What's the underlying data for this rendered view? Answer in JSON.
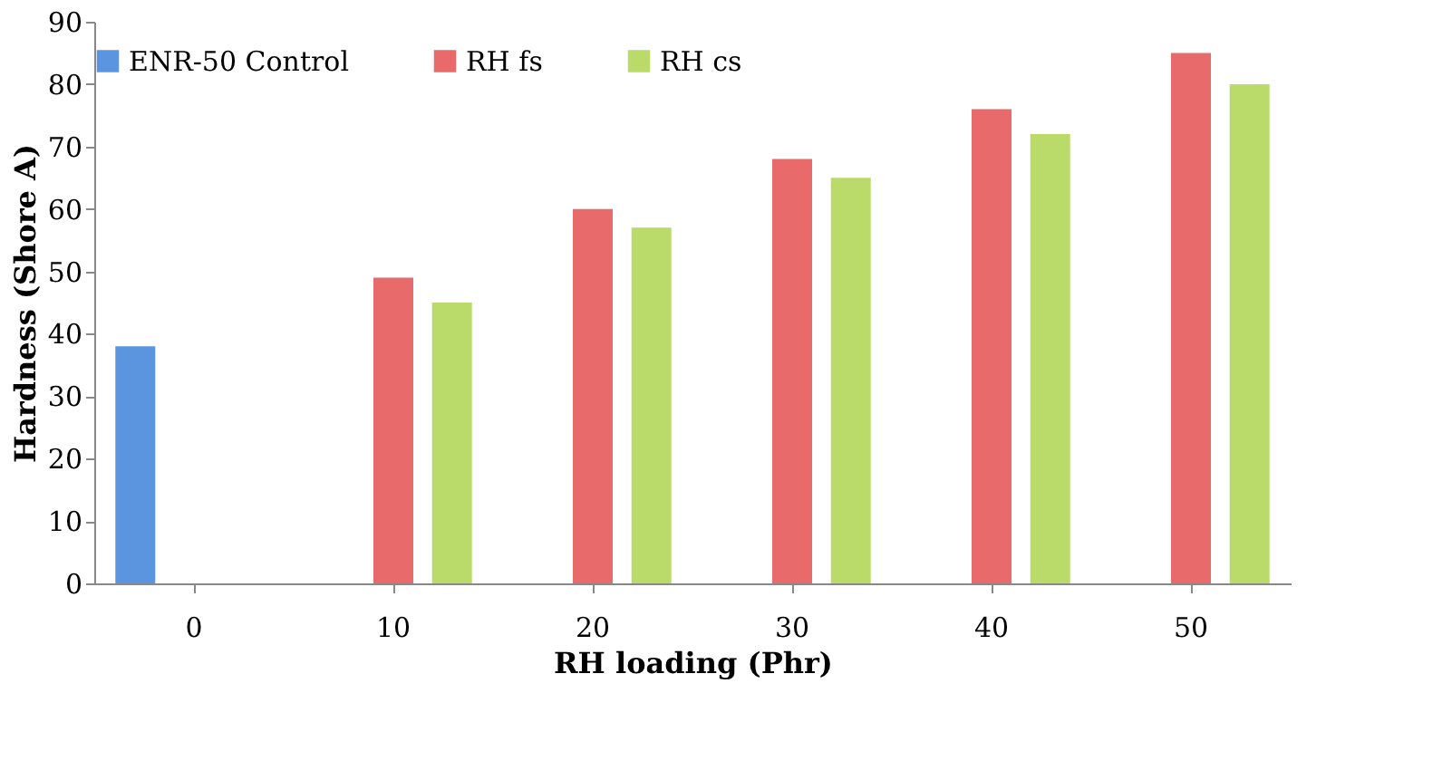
{
  "chart_data": {
    "type": "bar",
    "categories": [
      "0",
      "10",
      "20",
      "30",
      "40",
      "50"
    ],
    "xlabel": "RH loading (Phr)",
    "ylabel": "Hardness (Shore A)",
    "series": [
      {
        "name": "ENR-50 Control",
        "color": "#5b95e0",
        "values": [
          38,
          null,
          null,
          null,
          null,
          null
        ]
      },
      {
        "name": "RH fs",
        "color": "#e86a6a",
        "values": [
          null,
          49,
          60,
          68,
          76,
          85
        ]
      },
      {
        "name": "RH cs",
        "color": "#bada6a",
        "values": [
          null,
          45,
          57,
          65,
          72,
          80
        ]
      }
    ],
    "ylim": [
      0,
      90
    ],
    "yticks": [
      0,
      10,
      20,
      30,
      40,
      50,
      60,
      70,
      80,
      90
    ],
    "grid": false,
    "legend": "top"
  }
}
